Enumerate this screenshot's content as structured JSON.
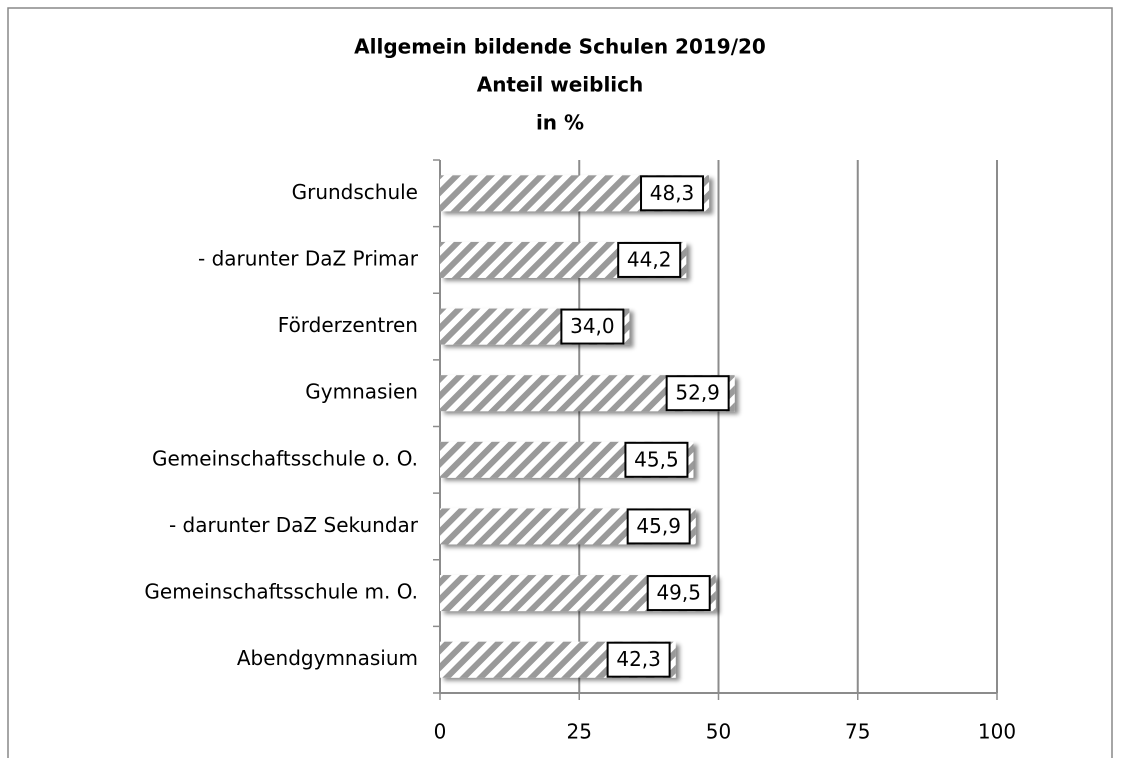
{
  "chart_data": {
    "type": "bar",
    "orientation": "horizontal",
    "title": [
      "Allgemein bildende Schulen 2019/20",
      "Anteil weiblich",
      "in %"
    ],
    "categories": [
      "Grundschule",
      "- darunter DaZ Primar",
      "Förderzentren",
      "Gymnasien",
      "Gemeinschaftsschule o. O.",
      "- darunter DaZ Sekundar",
      "Gemeinschaftsschule m. O.",
      "Abendgymnasium"
    ],
    "values": [
      48.3,
      44.2,
      34.0,
      52.9,
      45.5,
      45.9,
      49.5,
      42.3
    ],
    "value_labels": [
      "48,3",
      "44,2",
      "34,0",
      "52,9",
      "45,5",
      "45,9",
      "49,5",
      "42,3"
    ],
    "color": "#9a9a9a",
    "xlim": [
      0,
      100
    ],
    "xticks": [
      0,
      25,
      50,
      75,
      100
    ],
    "grid": true
  }
}
